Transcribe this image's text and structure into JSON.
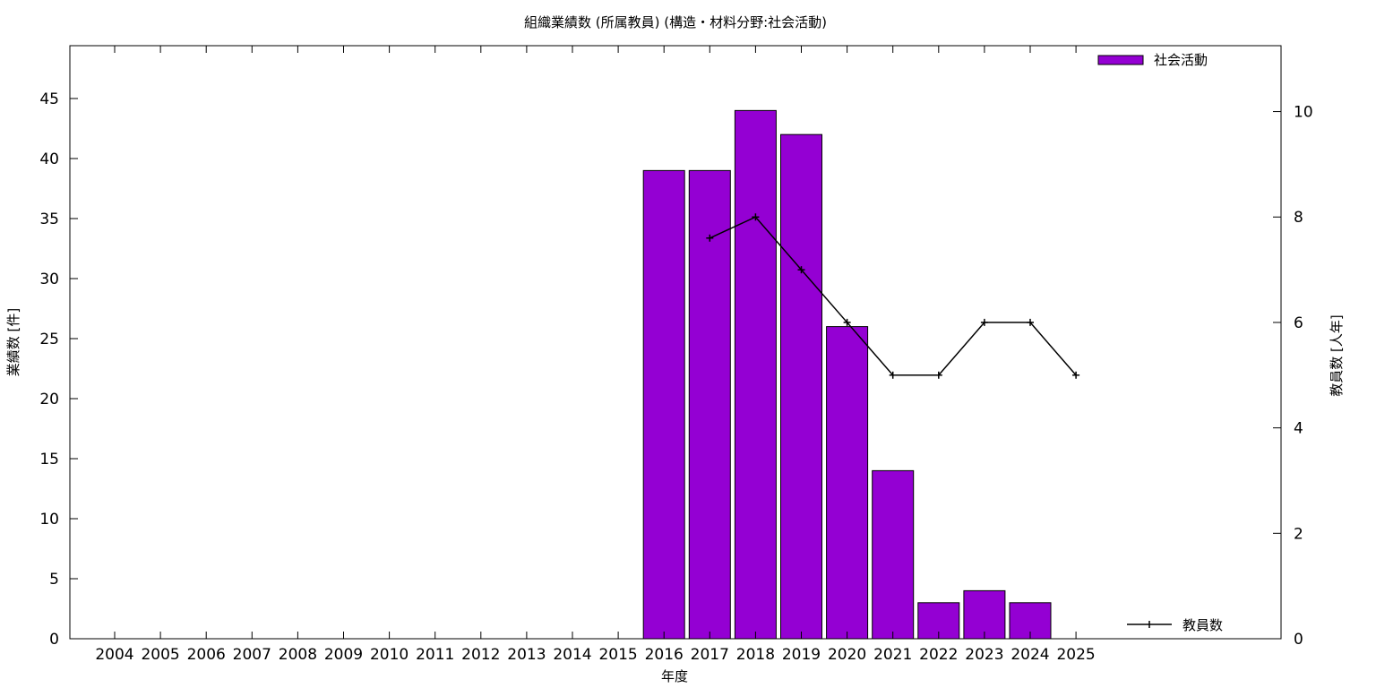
{
  "chart_data": {
    "type": "bar",
    "title": "組織業績数 (所属教員) (構造・材料分野:社会活動)",
    "xlabel": "年度",
    "ylabel": "業績数 [件]",
    "y2label": "教員数 [人年]",
    "categories": [
      "2004",
      "2005",
      "2006",
      "2007",
      "2008",
      "2009",
      "2010",
      "2011",
      "2012",
      "2013",
      "2014",
      "2015",
      "2016",
      "2017",
      "2018",
      "2019",
      "2020",
      "2021",
      "2022",
      "2023",
      "2024",
      "2025"
    ],
    "series": [
      {
        "name": "社会活動",
        "type": "bar",
        "axis": "left",
        "color": "#9400d3",
        "values": [
          0,
          0,
          0,
          0,
          0,
          0,
          0,
          0,
          0,
          0,
          0,
          0,
          39,
          39,
          44,
          42,
          26,
          14,
          3,
          4,
          3,
          0
        ]
      },
      {
        "name": "教員数",
        "type": "line",
        "axis": "right",
        "color": "#000000",
        "values": [
          null,
          null,
          null,
          null,
          null,
          null,
          null,
          null,
          null,
          null,
          null,
          null,
          null,
          7.6,
          8,
          7,
          6,
          5,
          5,
          6,
          6,
          5
        ]
      }
    ],
    "ylim": [
      0,
      49.4
    ],
    "yticks": [
      0,
      5,
      10,
      15,
      20,
      25,
      30,
      35,
      40,
      45
    ],
    "y2lim": [
      0,
      11.25
    ],
    "y2ticks": [
      0,
      2,
      4,
      6,
      8,
      10
    ],
    "legend": [
      "top-right",
      "bottom-right"
    ],
    "grid": false
  }
}
